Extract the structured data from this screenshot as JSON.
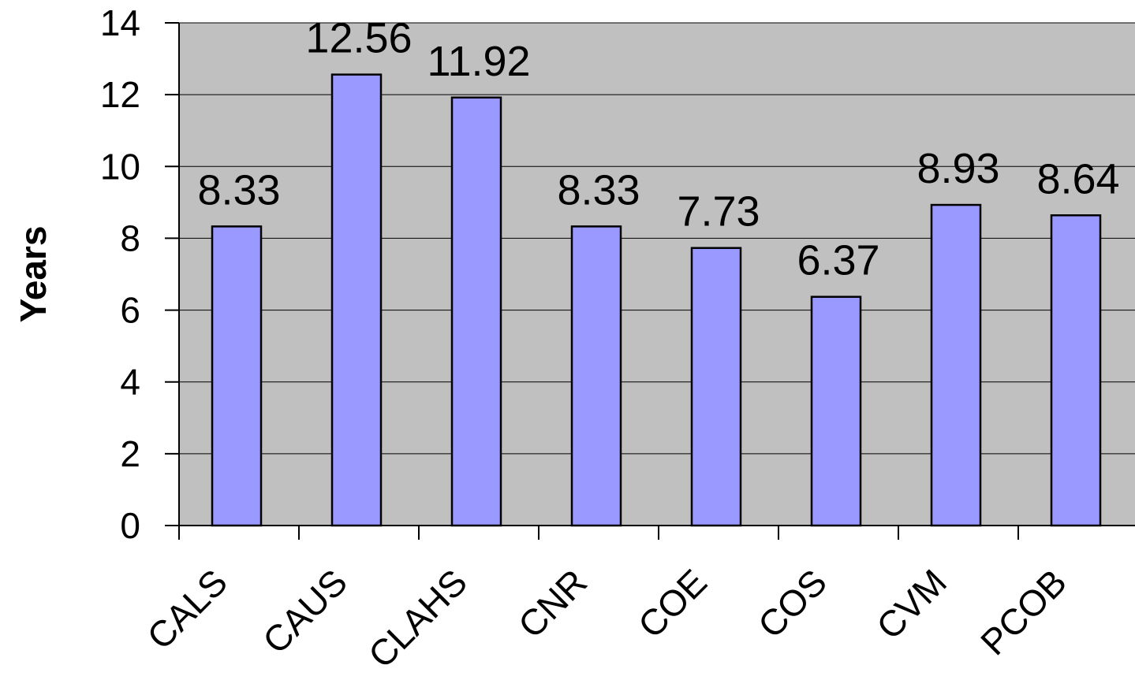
{
  "chart_data": {
    "type": "bar",
    "title": "",
    "xlabel": "",
    "ylabel": "Years",
    "categories": [
      "CALS",
      "CAUS",
      "CLAHS",
      "CNR",
      "COE",
      "COS",
      "CVM",
      "PCOB"
    ],
    "values": [
      8.33,
      12.56,
      11.92,
      8.33,
      7.73,
      6.37,
      8.93,
      8.64
    ],
    "data_labels": [
      "8.33",
      "12.56",
      "11.92",
      "8.33",
      "7.73",
      "6.37",
      "8.93",
      "8.64"
    ],
    "yticks": [
      "0",
      "2",
      "4",
      "6",
      "8",
      "10",
      "12",
      "14"
    ],
    "ylim": [
      0,
      14
    ],
    "grid": true,
    "legend": "none",
    "colors": {
      "plot_area": "#c0c0c0",
      "bar_fill": "#9999ff",
      "bar_stroke": "#000000",
      "gridline": "#000000"
    }
  }
}
